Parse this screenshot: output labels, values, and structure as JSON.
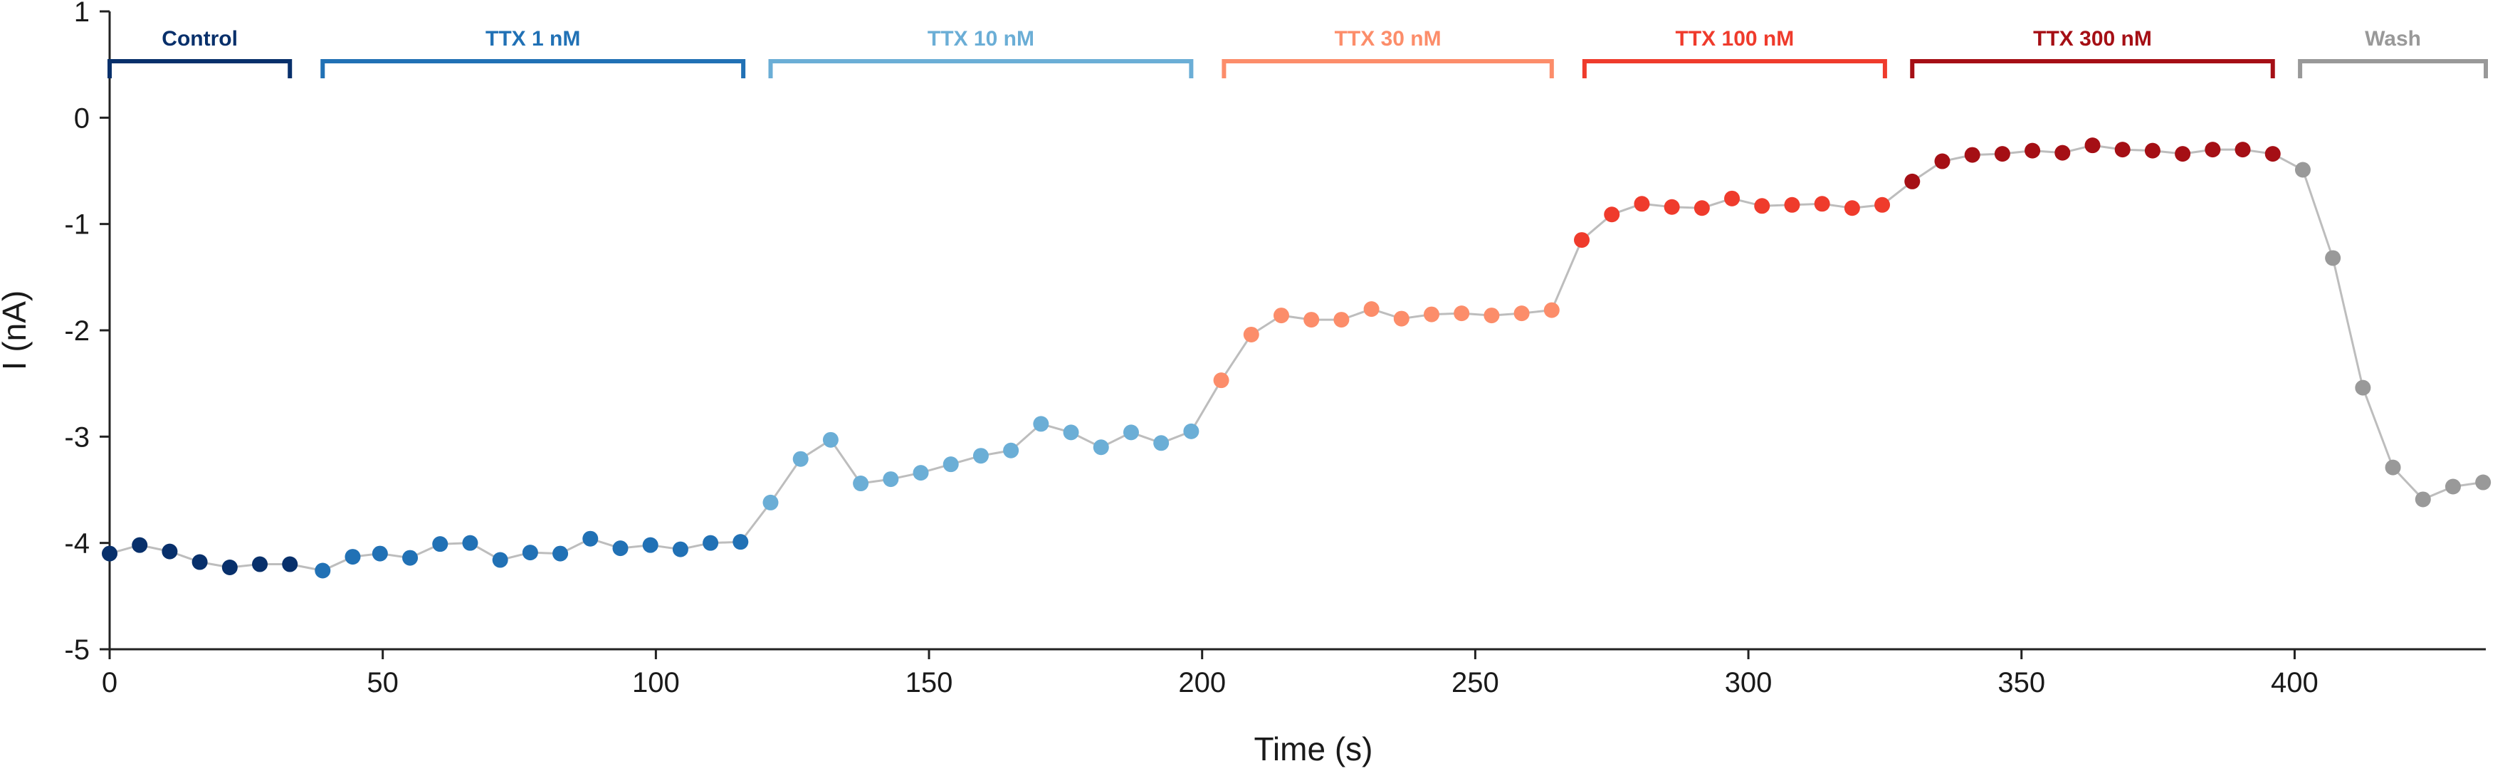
{
  "chart_data": {
    "type": "scatter",
    "title": "",
    "xlabel": "Time (s)",
    "ylabel": "I (nA)",
    "xlim": [
      0,
      435
    ],
    "ylim": [
      -5,
      1
    ],
    "xticks": [
      0,
      50,
      100,
      150,
      200,
      250,
      300,
      350,
      400
    ],
    "yticks": [
      1,
      0,
      -1,
      -2,
      -3,
      -4,
      -5
    ],
    "connector_color": "#bdbdbd",
    "conditions": [
      {
        "name": "Control",
        "color": "#08306b",
        "start": 0,
        "end": 33
      },
      {
        "name": "TTX 1 nM",
        "color": "#2171b5",
        "start": 39,
        "end": 116
      },
      {
        "name": "TTX 10 nM",
        "color": "#6baed6",
        "start": 121,
        "end": 198
      },
      {
        "name": "TTX 30 nM",
        "color": "#fc8d6a",
        "start": 204,
        "end": 264
      },
      {
        "name": "TTX 100 nM",
        "color": "#ef3b2c",
        "start": 270,
        "end": 325
      },
      {
        "name": "TTX 300 nM",
        "color": "#a50f15",
        "start": 330,
        "end": 396
      },
      {
        "name": "Wash",
        "color": "#999999",
        "start": 401,
        "end": 435
      }
    ],
    "series": [
      {
        "name": "Control",
        "color": "#08306b",
        "x": [
          0,
          5.5,
          11,
          16.5,
          22,
          27.5,
          33
        ],
        "y": [
          -4.1,
          -4.02,
          -4.08,
          -4.18,
          -4.23,
          -4.2,
          -4.2
        ]
      },
      {
        "name": "TTX 1 nM",
        "color": "#2171b5",
        "x": [
          39,
          44.5,
          49.5,
          55,
          60.5,
          66,
          71.5,
          77,
          82.5,
          88,
          93.5,
          99,
          104.5,
          110,
          115.5
        ],
        "y": [
          -4.26,
          -4.13,
          -4.1,
          -4.14,
          -4.01,
          -4.0,
          -4.16,
          -4.09,
          -4.1,
          -3.96,
          -4.05,
          -4.02,
          -4.06,
          -4.0,
          -3.99
        ]
      },
      {
        "name": "TTX 10 nM",
        "color": "#6baed6",
        "x": [
          121,
          126.5,
          132,
          137.5,
          143,
          148.5,
          154,
          159.5,
          165,
          170.5,
          176,
          181.5,
          187,
          192.5,
          198
        ],
        "y": [
          -3.62,
          -3.21,
          -3.03,
          -3.44,
          -3.4,
          -3.34,
          -3.26,
          -3.18,
          -3.13,
          -2.88,
          -2.96,
          -3.1,
          -2.96,
          -3.06,
          -2.95
        ]
      },
      {
        "name": "TTX 30 nM",
        "color": "#fc8d6a",
        "x": [
          203.5,
          209,
          214.5,
          220,
          225.5,
          231,
          236.5,
          242,
          247.5,
          253,
          258.5,
          264
        ],
        "y": [
          -2.47,
          -2.04,
          -1.86,
          -1.9,
          -1.9,
          -1.8,
          -1.89,
          -1.85,
          -1.84,
          -1.86,
          -1.84,
          -1.81
        ]
      },
      {
        "name": "TTX 100 nM",
        "color": "#ef3b2c",
        "x": [
          269.5,
          275,
          280.5,
          286,
          291.5,
          297,
          302.5,
          308,
          313.5,
          319,
          324.5
        ],
        "y": [
          -1.15,
          -0.91,
          -0.81,
          -0.84,
          -0.85,
          -0.76,
          -0.83,
          -0.82,
          -0.81,
          -0.85,
          -0.82
        ]
      },
      {
        "name": "TTX 300 nM",
        "color": "#a50f15",
        "x": [
          330,
          335.5,
          341,
          346.5,
          352,
          357.5,
          363,
          368.5,
          374,
          379.5,
          385,
          390.5,
          396
        ],
        "y": [
          -0.6,
          -0.41,
          -0.35,
          -0.34,
          -0.31,
          -0.33,
          -0.26,
          -0.3,
          -0.31,
          -0.34,
          -0.3,
          -0.3,
          -0.34
        ]
      },
      {
        "name": "Wash",
        "color": "#999999",
        "x": [
          401.5,
          407,
          412.5,
          418,
          423.5,
          429,
          434.5
        ],
        "y": [
          -0.49,
          -1.32,
          -2.54,
          -3.29,
          -3.59,
          -3.47,
          -3.43
        ]
      }
    ]
  }
}
